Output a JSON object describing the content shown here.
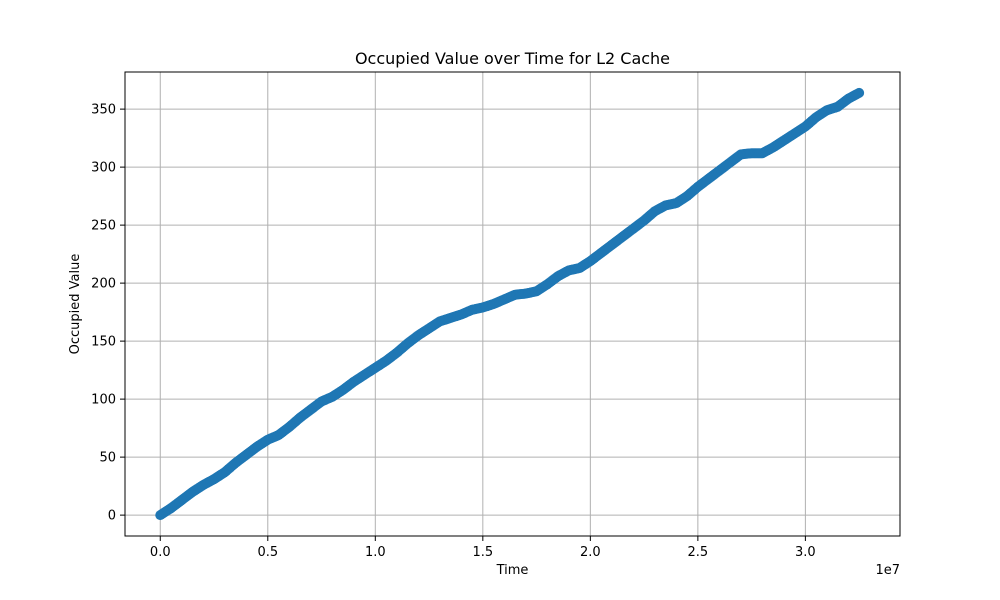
{
  "chart_data": {
    "type": "scatter",
    "title": "Occupied Value over Time for L2 Cache",
    "xlabel": "Time",
    "ylabel": "Occupied Value",
    "x_offset_label": "1e7",
    "x_scale": 10000000,
    "xlim": [
      -1640000,
      34400000
    ],
    "ylim": [
      -18,
      382
    ],
    "x_ticks": [
      0,
      5000000,
      10000000,
      15000000,
      20000000,
      25000000,
      30000000
    ],
    "x_tick_labels": [
      "0.0",
      "0.5",
      "1.0",
      "1.5",
      "2.0",
      "2.5",
      "3.0"
    ],
    "y_ticks": [
      0,
      50,
      100,
      150,
      200,
      250,
      300,
      350
    ],
    "y_tick_labels": [
      "0",
      "50",
      "100",
      "150",
      "200",
      "250",
      "300",
      "350"
    ],
    "grid": true,
    "marker_color": "#1f77b4",
    "series": [
      {
        "x": [
          0,
          500000,
          1000000,
          1500000,
          2000000,
          2500000,
          3000000,
          3500000,
          4000000,
          4500000,
          5000000,
          5500000,
          6000000,
          6500000,
          7000000,
          7500000,
          8000000,
          8500000,
          9000000,
          9500000,
          10000000,
          10500000,
          11000000,
          11500000,
          12000000,
          12500000,
          13000000,
          13500000,
          14000000,
          14500000,
          15000000,
          15500000,
          16000000,
          16500000,
          17000000,
          17500000,
          18000000,
          18500000,
          19000000,
          19500000,
          20000000,
          20500000,
          21000000,
          21500000,
          22000000,
          22500000,
          23000000,
          23500000,
          24000000,
          24500000,
          25000000,
          25500000,
          26000000,
          26500000,
          27000000,
          27500000,
          28000000,
          28500000,
          29000000,
          29500000,
          30000000,
          30500000,
          31000000,
          31500000,
          32000000,
          32500000
        ],
        "y": [
          0,
          6,
          13,
          20,
          26,
          31,
          37,
          45,
          52,
          59,
          65,
          69,
          76,
          84,
          91,
          98,
          102,
          108,
          115,
          121,
          127,
          133,
          140,
          148,
          155,
          161,
          167,
          170,
          173,
          177,
          179,
          182,
          186,
          190,
          191,
          193,
          199,
          206,
          211,
          213,
          219,
          226,
          233,
          240,
          247,
          254,
          262,
          267,
          269,
          275,
          283,
          290,
          297,
          304,
          311,
          312,
          312,
          317,
          323,
          329,
          335,
          343,
          349,
          352,
          359,
          364
        ]
      }
    ]
  }
}
